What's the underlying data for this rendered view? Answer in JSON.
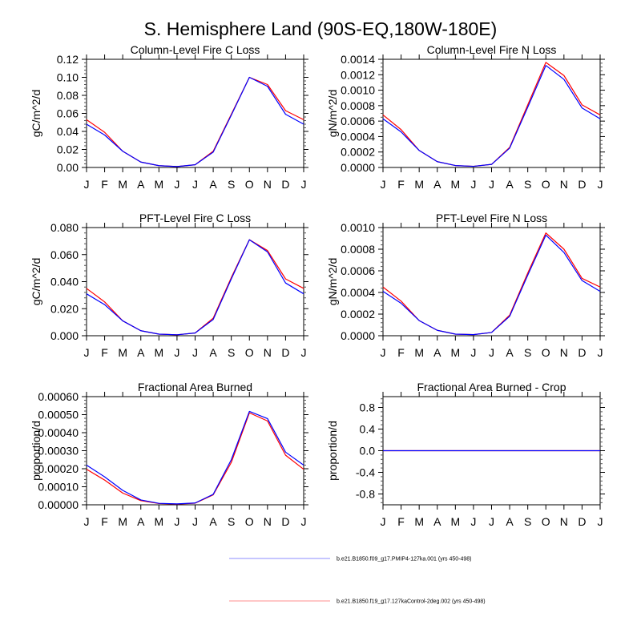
{
  "figure": {
    "title": "S. Hemisphere Land (90S-EQ,180W-180E)"
  },
  "legend": {
    "placement": "bottom-center",
    "entries": [
      {
        "label": "b.e21.B1850.f09_g17.PMIP4-127ka.001 (yrs 450-498)",
        "color": "#0000ff"
      },
      {
        "label": "b.e21.B1850.f19_g17.127kaControl-2deg.002 (yrs 450-498)",
        "color": "#ff0000"
      }
    ]
  },
  "chart_data": [
    {
      "type": "line",
      "title": "Column-Level Fire C Loss",
      "xlabel": "",
      "ylabel": "gC/m^2/d",
      "x": [
        "J",
        "F",
        "M",
        "A",
        "M",
        "J",
        "J",
        "A",
        "S",
        "O",
        "N",
        "D",
        "J"
      ],
      "ylim": [
        0,
        0.12
      ],
      "yticks": [
        "0.00",
        "0.02",
        "0.04",
        "0.06",
        "0.08",
        "0.10",
        "0.12"
      ],
      "yticks_values": [
        0,
        0.02,
        0.04,
        0.06,
        0.08,
        0.1,
        0.12
      ],
      "minor_per_major": 4,
      "grid": false,
      "series": [
        {
          "name": "b.e21.B1850.f19_g17.127kaControl-2deg.002 (yrs 450-498)",
          "color": "#ff0000",
          "values": [
            0.053,
            0.039,
            0.018,
            0.006,
            0.002,
            0.001,
            0.003,
            0.018,
            0.059,
            0.1,
            0.092,
            0.063,
            0.053
          ]
        },
        {
          "name": "b.e21.B1850.f09_g17.PMIP4-127ka.001 (yrs 450-498)",
          "color": "#0000ff",
          "values": [
            0.048,
            0.036,
            0.018,
            0.006,
            0.002,
            0.001,
            0.003,
            0.017,
            0.058,
            0.1,
            0.09,
            0.059,
            0.048
          ]
        }
      ]
    },
    {
      "type": "line",
      "title": "Column-Level Fire N Loss",
      "xlabel": "",
      "ylabel": "gN/m^2/d",
      "x": [
        "J",
        "F",
        "M",
        "A",
        "M",
        "J",
        "J",
        "A",
        "S",
        "O",
        "N",
        "D",
        "J"
      ],
      "ylim": [
        0,
        0.0014
      ],
      "yticks": [
        "0.0000",
        "0.0002",
        "0.0004",
        "0.0006",
        "0.0008",
        "0.0010",
        "0.0012",
        "0.0014"
      ],
      "yticks_values": [
        0,
        0.0002,
        0.0004,
        0.0006,
        0.0008,
        0.001,
        0.0012,
        0.0014
      ],
      "minor_per_major": 3,
      "grid": false,
      "series": [
        {
          "name": "b.e21.B1850.f19_g17.127kaControl-2deg.002 (yrs 450-498)",
          "color": "#ff0000",
          "values": [
            0.00068,
            0.00049,
            0.00022,
            7.5e-05,
            2.5e-05,
            1.5e-05,
            4e-05,
            0.00026,
            0.00081,
            0.00136,
            0.00119,
            0.00081,
            0.00068
          ]
        },
        {
          "name": "b.e21.B1850.f09_g17.PMIP4-127ka.001 (yrs 450-498)",
          "color": "#0000ff",
          "values": [
            0.00063,
            0.00046,
            0.00022,
            7.5e-05,
            2.5e-05,
            1.5e-05,
            4e-05,
            0.00025,
            0.00078,
            0.00132,
            0.00114,
            0.00077,
            0.00063
          ]
        }
      ]
    },
    {
      "type": "line",
      "title": "PFT-Level Fire C Loss",
      "xlabel": "",
      "ylabel": "gC/m^2/d",
      "x": [
        "J",
        "F",
        "M",
        "A",
        "M",
        "J",
        "J",
        "A",
        "S",
        "O",
        "N",
        "D",
        "J"
      ],
      "ylim": [
        0,
        0.08
      ],
      "yticks": [
        "0.000",
        "0.020",
        "0.040",
        "0.060",
        "0.080"
      ],
      "yticks_values": [
        0,
        0.02,
        0.04,
        0.06,
        0.08
      ],
      "minor_per_major": 4,
      "grid": false,
      "series": [
        {
          "name": "b.e21.B1850.f19_g17.127kaControl-2deg.002 (yrs 450-498)",
          "color": "#ff0000",
          "values": [
            0.035,
            0.025,
            0.011,
            0.0037,
            0.0012,
            0.0007,
            0.002,
            0.013,
            0.043,
            0.071,
            0.063,
            0.042,
            0.035
          ]
        },
        {
          "name": "b.e21.B1850.f09_g17.PMIP4-127ka.001 (yrs 450-498)",
          "color": "#0000ff",
          "values": [
            0.031,
            0.023,
            0.011,
            0.0037,
            0.0012,
            0.0007,
            0.002,
            0.012,
            0.042,
            0.071,
            0.062,
            0.039,
            0.031
          ]
        }
      ]
    },
    {
      "type": "line",
      "title": "PFT-Level Fire N Loss",
      "xlabel": "",
      "ylabel": "gN/m^2/d",
      "x": [
        "J",
        "F",
        "M",
        "A",
        "M",
        "J",
        "J",
        "A",
        "S",
        "O",
        "N",
        "D",
        "J"
      ],
      "ylim": [
        0,
        0.001
      ],
      "yticks": [
        "0.0000",
        "0.0002",
        "0.0004",
        "0.0006",
        "0.0008",
        "0.0010"
      ],
      "yticks_values": [
        0,
        0.0002,
        0.0004,
        0.0006,
        0.0008,
        0.001
      ],
      "minor_per_major": 4,
      "grid": false,
      "series": [
        {
          "name": "b.e21.B1850.f19_g17.127kaControl-2deg.002 (yrs 450-498)",
          "color": "#ff0000",
          "values": [
            0.00045,
            0.00032,
            0.00014,
            5e-05,
            1.5e-05,
            1e-05,
            3e-05,
            0.00019,
            0.00058,
            0.00095,
            0.0008,
            0.00053,
            0.00045
          ]
        },
        {
          "name": "b.e21.B1850.f09_g17.PMIP4-127ka.001 (yrs 450-498)",
          "color": "#0000ff",
          "values": [
            0.00041,
            0.0003,
            0.00014,
            5e-05,
            1.5e-05,
            1e-05,
            3e-05,
            0.00018,
            0.00056,
            0.00093,
            0.00077,
            0.00051,
            0.00041
          ]
        }
      ]
    },
    {
      "type": "line",
      "title": "Fractional Area Burned",
      "xlabel": "",
      "ylabel": "proportion/d",
      "x": [
        "J",
        "F",
        "M",
        "A",
        "M",
        "J",
        "J",
        "A",
        "S",
        "O",
        "N",
        "D",
        "J"
      ],
      "ylim": [
        0,
        0.0006
      ],
      "yticks": [
        "0.00000",
        "0.00010",
        "0.00020",
        "0.00030",
        "0.00040",
        "0.00050",
        "0.00060"
      ],
      "yticks_values": [
        0,
        0.0001,
        0.0002,
        0.0003,
        0.0004,
        0.0005,
        0.0006
      ],
      "minor_per_major": 4,
      "grid": false,
      "series": [
        {
          "name": "b.e21.B1850.f19_g17.127kaControl-2deg.002 (yrs 450-498)",
          "color": "#ff0000",
          "values": [
            0.000197,
            0.000137,
            6.5e-05,
            2.3e-05,
            7e-06,
            4e-06,
            9e-06,
            5.5e-05,
            0.000235,
            0.00051,
            0.000465,
            0.000275,
            0.000197
          ]
        },
        {
          "name": "b.e21.B1850.f09_g17.PMIP4-127ka.001 (yrs 450-498)",
          "color": "#0000ff",
          "values": [
            0.00022,
            0.000155,
            8e-05,
            2.7e-05,
            8e-06,
            5e-06,
            1e-05,
            5.8e-05,
            0.00025,
            0.000518,
            0.000478,
            0.000292,
            0.00022
          ]
        }
      ]
    },
    {
      "type": "line",
      "title": "Fractional Area Burned - Crop",
      "xlabel": "",
      "ylabel": "proportion/d",
      "x": [
        "J",
        "F",
        "M",
        "A",
        "M",
        "J",
        "J",
        "A",
        "S",
        "O",
        "N",
        "D",
        "J"
      ],
      "ylim": [
        -1.0,
        1.0
      ],
      "yticks": [
        "-0.8",
        "-0.4",
        "0.0",
        "0.4",
        "0.8"
      ],
      "yticks_values": [
        -0.8,
        -0.4,
        0.0,
        0.4,
        0.8
      ],
      "minor_per_major": 4,
      "grid": false,
      "series": [
        {
          "name": "b.e21.B1850.f19_g17.127kaControl-2deg.002 (yrs 450-498)",
          "color": "#ff0000",
          "values": [
            0,
            0,
            0,
            0,
            0,
            0,
            0,
            0,
            0,
            0,
            0,
            0,
            0
          ]
        },
        {
          "name": "b.e21.B1850.f09_g17.PMIP4-127ka.001 (yrs 450-498)",
          "color": "#0000ff",
          "values": [
            0,
            0,
            0,
            0,
            0,
            0,
            0,
            0,
            0,
            0,
            0,
            0,
            0
          ]
        }
      ]
    }
  ]
}
